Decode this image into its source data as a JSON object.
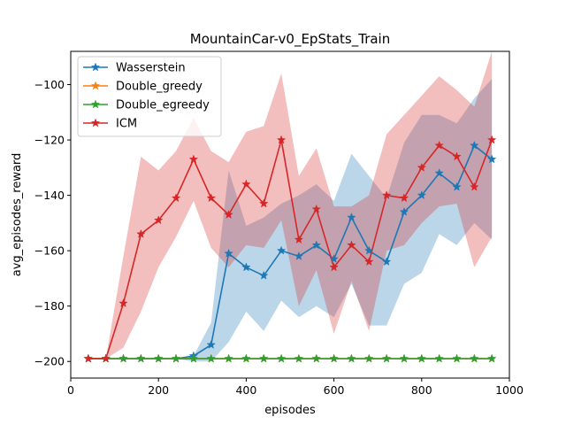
{
  "chart_data": {
    "type": "line",
    "title": "MountainCar-v0_EpStats_Train",
    "xlabel": "episodes",
    "ylabel": "avg_episodes_reward",
    "xlim": [
      0,
      1000
    ],
    "ylim": [
      -206,
      -88
    ],
    "xticks": [
      0,
      200,
      400,
      600,
      800,
      1000
    ],
    "yticks": [
      -200,
      -180,
      -160,
      -140,
      -120,
      -100
    ],
    "grid": false,
    "legend_position": "top-left",
    "x": [
      40,
      80,
      120,
      160,
      200,
      240,
      280,
      320,
      360,
      400,
      440,
      480,
      520,
      560,
      600,
      640,
      680,
      720,
      760,
      800,
      840,
      880,
      920,
      960
    ],
    "series": [
      {
        "name": "Wasserstein",
        "color": "#1f77b4",
        "values": [
          -199,
          -199,
          -199,
          -199,
          -199,
          -199,
          -198,
          -194,
          -161,
          -166,
          -169,
          -160,
          -162,
          -158,
          -163,
          -148,
          -160,
          -164,
          -146,
          -140,
          -132,
          -137,
          -122,
          -127
        ],
        "lower": [
          -199,
          -199,
          -199,
          -199,
          -199,
          -199,
          -200,
          -200,
          -193,
          -182,
          -189,
          -178,
          -184,
          -180,
          -184,
          -172,
          -187,
          -187,
          -172,
          -168,
          -154,
          -158,
          -150,
          -156
        ],
        "upper": [
          -199,
          -199,
          -199,
          -199,
          -199,
          -199,
          -198,
          -186,
          -131,
          -151,
          -148,
          -143,
          -140,
          -136,
          -142,
          -125,
          -133,
          -141,
          -121,
          -111,
          -111,
          -114,
          -105,
          -98
        ]
      },
      {
        "name": "Double_greedy",
        "color": "#ff7f0e",
        "values": [
          -199,
          -199,
          -199,
          -199,
          -199,
          -199,
          -199,
          -199,
          -199,
          -199,
          -199,
          -199,
          -199,
          -199,
          -199,
          -199,
          -199,
          -199,
          -199,
          -199,
          -199,
          -199,
          -199,
          -199
        ]
      },
      {
        "name": "Double_egreedy",
        "color": "#2ca02c",
        "values": [
          -199,
          -199,
          -199,
          -199,
          -199,
          -199,
          -199,
          -199,
          -199,
          -199,
          -199,
          -199,
          -199,
          -199,
          -199,
          -199,
          -199,
          -199,
          -199,
          -199,
          -199,
          -199,
          -199,
          -199
        ]
      },
      {
        "name": "ICM",
        "color": "#d62728",
        "values": [
          -199,
          -199,
          -179,
          -154,
          -149,
          -141,
          -127,
          -141,
          -147,
          -136,
          -143,
          -120,
          -156,
          -145,
          -166,
          -158,
          -164,
          -140,
          -141,
          -130,
          -122,
          -126,
          -137,
          -120
        ],
        "lower": [
          -199,
          -199,
          -195,
          -182,
          -166,
          -155,
          -142,
          -159,
          -166,
          -158,
          -159,
          -149,
          -180,
          -167,
          -190,
          -171,
          -189,
          -160,
          -158,
          -150,
          -144,
          -143,
          -166,
          -155
        ],
        "upper": [
          -199,
          -199,
          -162,
          -126,
          -131,
          -124,
          -112,
          -124,
          -128,
          -117,
          -115,
          -96,
          -133,
          -123,
          -144,
          -144,
          -140,
          -118,
          -111,
          -104,
          -97,
          -102,
          -108,
          -88
        ]
      }
    ]
  }
}
